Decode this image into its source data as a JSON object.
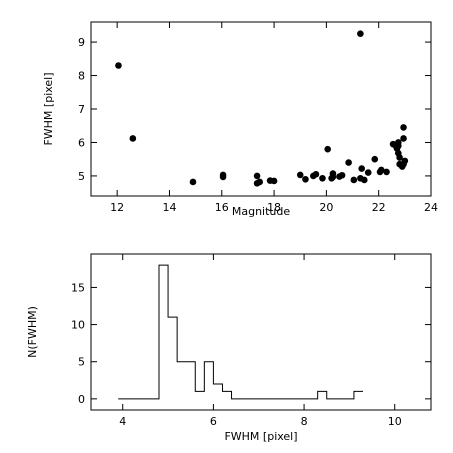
{
  "chart_data": [
    {
      "type": "scatter",
      "xlabel": "Magnitude",
      "ylabel": "FWHM  [pixel]",
      "xlim": [
        11,
        24
      ],
      "ylim": [
        4.4,
        9.6
      ],
      "xticks": [
        12,
        14,
        16,
        18,
        20,
        22,
        24
      ],
      "yticks": [
        5,
        6,
        7,
        8,
        9
      ],
      "points": [
        [
          12.05,
          8.3
        ],
        [
          12.6,
          6.12
        ],
        [
          14.9,
          4.82
        ],
        [
          16.05,
          4.97
        ],
        [
          16.05,
          5.03
        ],
        [
          17.35,
          4.78
        ],
        [
          17.35,
          5.0
        ],
        [
          17.45,
          4.82
        ],
        [
          17.85,
          4.86
        ],
        [
          18.0,
          4.85
        ],
        [
          19.0,
          5.03
        ],
        [
          19.2,
          4.9
        ],
        [
          19.5,
          5.0
        ],
        [
          19.6,
          5.05
        ],
        [
          19.85,
          4.93
        ],
        [
          20.05,
          5.8
        ],
        [
          20.2,
          4.93
        ],
        [
          20.25,
          5.07
        ],
        [
          20.25,
          4.97
        ],
        [
          20.5,
          4.98
        ],
        [
          20.6,
          5.02
        ],
        [
          20.85,
          5.4
        ],
        [
          21.05,
          4.88
        ],
        [
          21.3,
          4.93
        ],
        [
          21.3,
          9.25
        ],
        [
          21.35,
          5.22
        ],
        [
          21.45,
          4.88
        ],
        [
          21.6,
          5.1
        ],
        [
          21.85,
          5.5
        ],
        [
          22.05,
          5.12
        ],
        [
          22.1,
          5.18
        ],
        [
          22.3,
          5.12
        ],
        [
          22.55,
          5.95
        ],
        [
          22.65,
          5.9
        ],
        [
          22.7,
          5.82
        ],
        [
          22.75,
          5.9
        ],
        [
          22.75,
          6.0
        ],
        [
          22.75,
          5.68
        ],
        [
          22.8,
          5.35
        ],
        [
          22.8,
          5.55
        ],
        [
          22.9,
          5.28
        ],
        [
          22.95,
          5.35
        ],
        [
          22.95,
          6.12
        ],
        [
          22.95,
          6.45
        ],
        [
          23.0,
          5.45
        ]
      ]
    },
    {
      "type": "histogram",
      "xlabel": "FWHM  [pixel]",
      "ylabel": "N(FWHM)",
      "xlim": [
        3.3,
        10.8
      ],
      "ylim": [
        -1.5,
        19.5
      ],
      "xticks": [
        4,
        6,
        8,
        10
      ],
      "yticks": [
        0,
        5,
        10,
        15
      ],
      "bin_edges": [
        3.9,
        4.8,
        5.0,
        5.2,
        5.4,
        5.6,
        5.8,
        6.0,
        6.2,
        6.4,
        6.6,
        8.3,
        8.5,
        9.1,
        9.3
      ],
      "counts": [
        0,
        18,
        11,
        5,
        5,
        1,
        5,
        2,
        1,
        0,
        0,
        1,
        0,
        1
      ]
    }
  ]
}
